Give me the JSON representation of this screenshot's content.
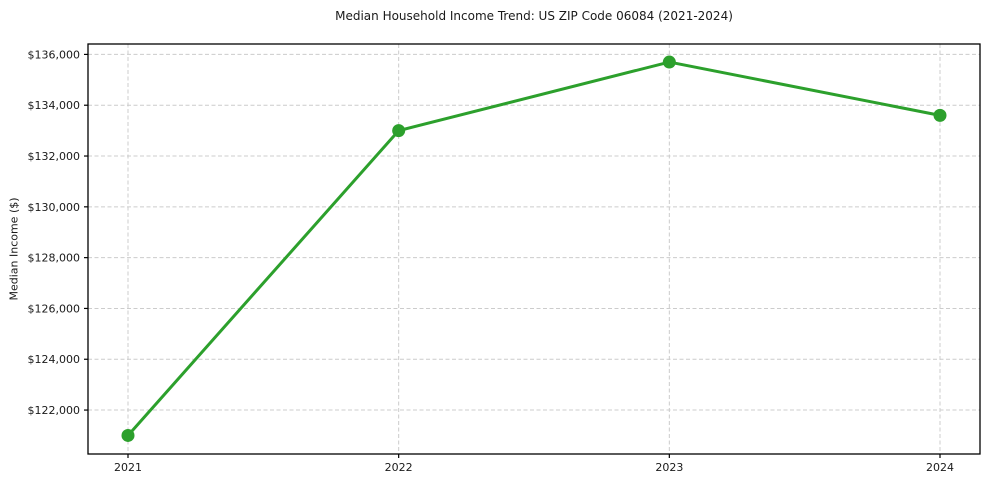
{
  "chart_data": {
    "type": "line",
    "title": "Median Household Income Trend: US ZIP Code 06084 (2021-2024)",
    "xlabel": "",
    "ylabel": "Median Income ($)",
    "categories": [
      "2021",
      "2022",
      "2023",
      "2024"
    ],
    "values": [
      121000,
      133000,
      135700,
      133600
    ],
    "ylim": [
      120270,
      136410
    ],
    "yticks": [
      122000,
      124000,
      126000,
      128000,
      130000,
      132000,
      134000,
      136000
    ],
    "ytick_labels": [
      "$122,000",
      "$124,000",
      "$126,000",
      "$128,000",
      "$130,000",
      "$132,000",
      "$134,000",
      "$136,000"
    ],
    "grid": true,
    "grid_style": "dashed",
    "legend_position": "none",
    "marker": "o",
    "colors": {
      "line": "#2ca02c",
      "marker": "#2ca02c",
      "grid": "#cccccc",
      "spine": "#000000",
      "text": "#1a1a1a",
      "background": "#ffffff"
    }
  }
}
